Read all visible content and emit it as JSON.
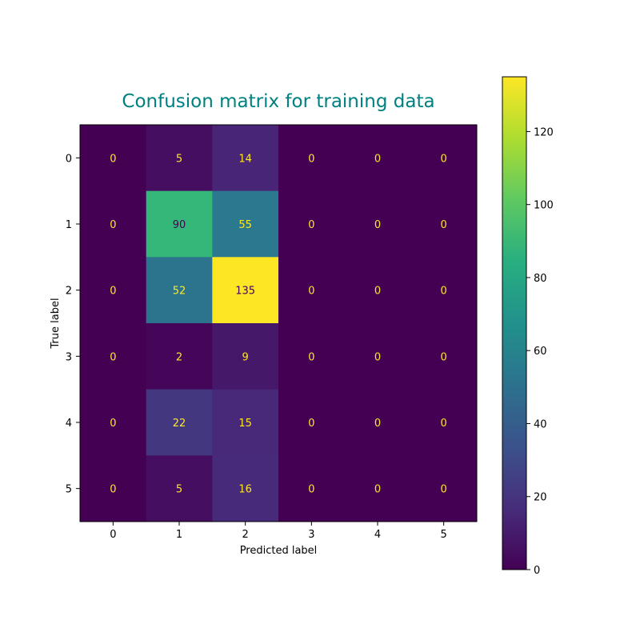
{
  "chart_data": {
    "type": "heatmap",
    "title": "Confusion matrix for training data",
    "title_color": "#008080",
    "xlabel": "Predicted label",
    "ylabel": "True label",
    "x_categories": [
      "0",
      "1",
      "2",
      "3",
      "4",
      "5"
    ],
    "y_categories": [
      "0",
      "1",
      "2",
      "3",
      "4",
      "5"
    ],
    "matrix": [
      [
        0,
        5,
        14,
        0,
        0,
        0
      ],
      [
        0,
        90,
        55,
        0,
        0,
        0
      ],
      [
        0,
        52,
        135,
        0,
        0,
        0
      ],
      [
        0,
        2,
        9,
        0,
        0,
        0
      ],
      [
        0,
        22,
        15,
        0,
        0,
        0
      ],
      [
        0,
        5,
        16,
        0,
        0,
        0
      ]
    ],
    "colormap": "viridis",
    "color_range": [
      0,
      135
    ],
    "colorbar_ticks": [
      "0",
      "20",
      "40",
      "60",
      "80",
      "100",
      "120"
    ],
    "colorbar_tick_values": [
      0,
      20,
      40,
      60,
      80,
      100,
      120
    ],
    "label_color_low": "#fde725",
    "label_color_high": "#440154"
  }
}
